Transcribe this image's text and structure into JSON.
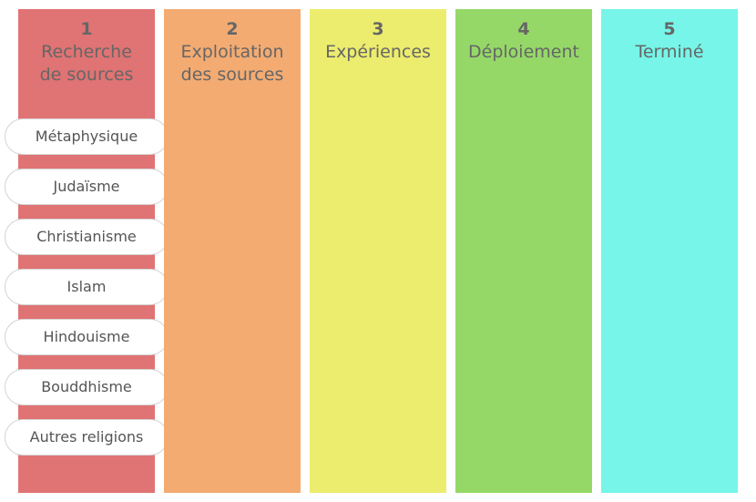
{
  "columns": [
    {
      "number": 1,
      "title_lines": [
        "Recherche",
        "de sources"
      ],
      "color": "#e07373",
      "cards": [
        "Métaphysique",
        "Judaïsme",
        "Christianisme",
        "Islam",
        "Hindouisme",
        "Bouddhisme",
        "Autres religions"
      ]
    },
    {
      "number": 2,
      "title_lines": [
        "Exploitation",
        "des sources"
      ],
      "color": "#f3ab72",
      "cards": []
    },
    {
      "number": 3,
      "title_lines": [
        "Expériences"
      ],
      "color": "#ecec6e",
      "cards": []
    },
    {
      "number": 4,
      "title_lines": [
        "Déploiement"
      ],
      "color": "#95d868",
      "cards": []
    },
    {
      "number": 5,
      "title_lines": [
        "Terminé"
      ],
      "color": "#76f5e8",
      "cards": []
    }
  ]
}
